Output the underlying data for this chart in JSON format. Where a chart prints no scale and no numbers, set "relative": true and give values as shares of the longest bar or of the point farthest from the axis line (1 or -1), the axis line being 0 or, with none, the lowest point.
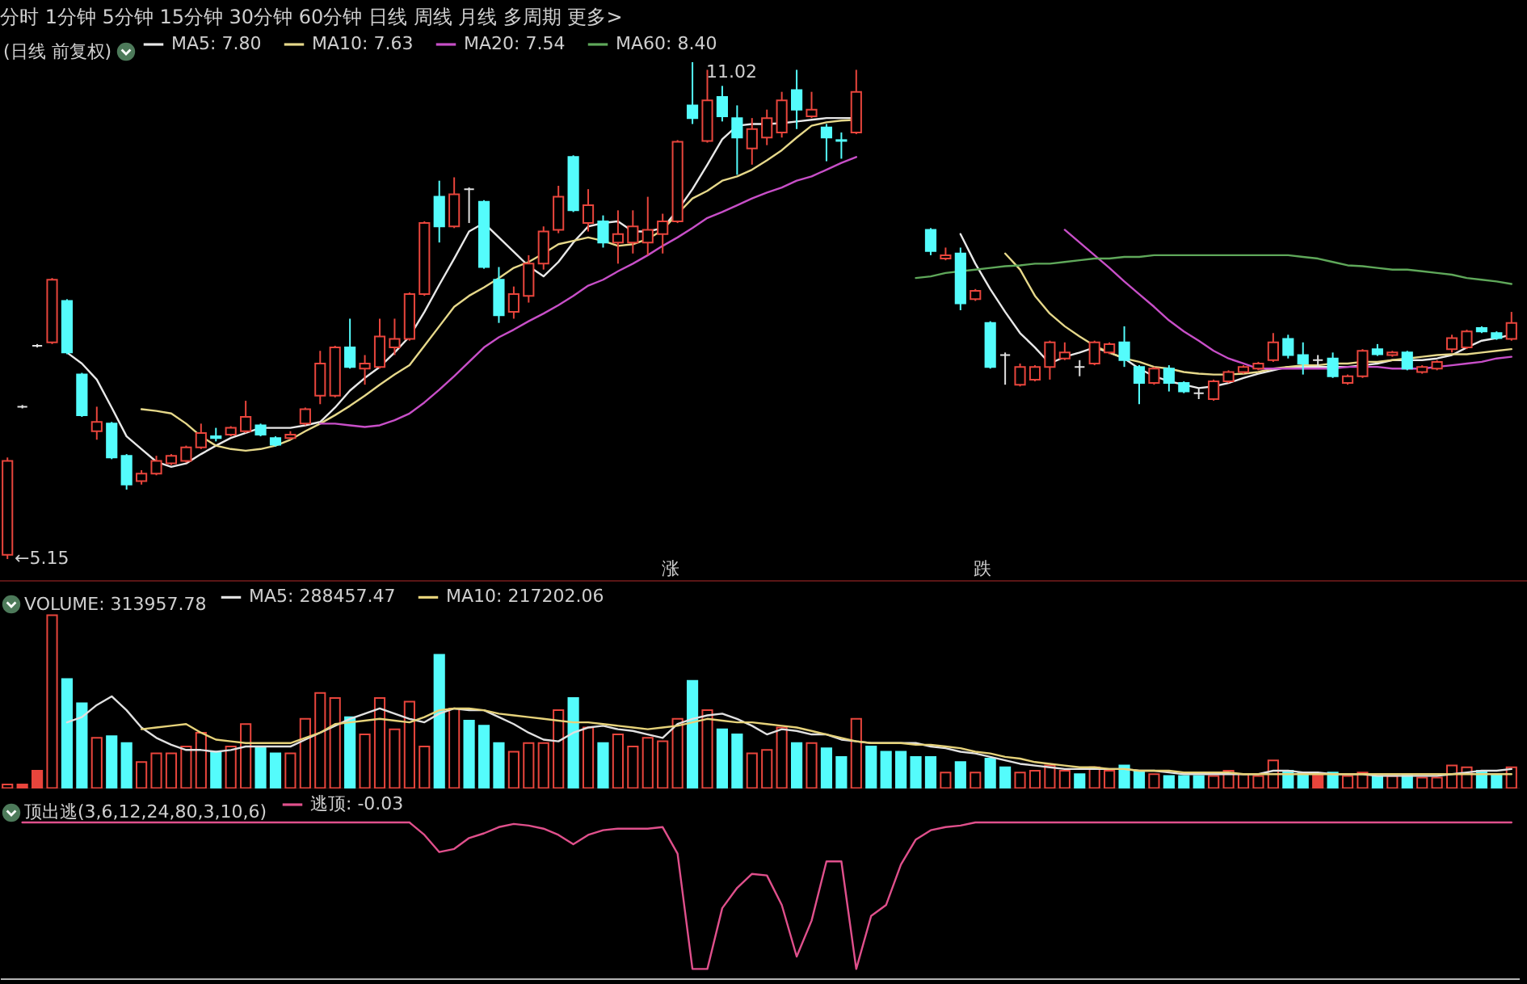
{
  "chart_data": [
    {
      "type": "candlestick",
      "title": "分时 1分钟 5分钟 15分钟 30分钟 60分钟 日线 周线 月线 多周期 更多>",
      "legend_title": "(日线 前复权)",
      "legend": "top left",
      "tick_labels": false,
      "categories": [
        null,
        null,
        null,
        null,
        null,
        null,
        null,
        null,
        null,
        null,
        null,
        null,
        null,
        null,
        null,
        null,
        null,
        null,
        null,
        null,
        null,
        null,
        null,
        null,
        null,
        null,
        null,
        null,
        null,
        null,
        null,
        null,
        null,
        null,
        null,
        null,
        null,
        null,
        null,
        null,
        null,
        null,
        null,
        null,
        null,
        null,
        null,
        null,
        null,
        null,
        null,
        null,
        null,
        null,
        null,
        null,
        null,
        null,
        null,
        null,
        null,
        null,
        null,
        null,
        null,
        null,
        null,
        null,
        null,
        null,
        null,
        null,
        null,
        null,
        null,
        null,
        null,
        null,
        null,
        null,
        null,
        null,
        null,
        null,
        null,
        null,
        null,
        null,
        null,
        null,
        null,
        null,
        null,
        null,
        null,
        null,
        null,
        null,
        null,
        null,
        null,
        null
      ],
      "series": [
        {
          "ohlc": [
            [
              5.2,
              6.35,
              5.15,
              6.31
            ],
            [
              6.95,
              6.97,
              6.93,
              6.95
            ],
            [
              7.67,
              7.69,
              7.65,
              7.67
            ],
            [
              7.71,
              8.47,
              7.69,
              8.45
            ],
            [
              8.2,
              8.22,
              7.57,
              7.59
            ],
            [
              7.33,
              7.35,
              6.83,
              6.85
            ],
            [
              6.66,
              6.95,
              6.56,
              6.77
            ],
            [
              6.75,
              6.77,
              6.33,
              6.35
            ],
            [
              6.37,
              6.39,
              5.97,
              6.03
            ],
            [
              6.07,
              6.2,
              6.03,
              6.16
            ],
            [
              6.16,
              6.37,
              6.14,
              6.31
            ],
            [
              6.28,
              6.39,
              6.26,
              6.37
            ],
            [
              6.31,
              6.49,
              6.29,
              6.47
            ],
            [
              6.47,
              6.75,
              6.45,
              6.64
            ],
            [
              6.6,
              6.7,
              6.54,
              6.58
            ],
            [
              6.62,
              6.72,
              6.6,
              6.7
            ],
            [
              6.66,
              7.02,
              6.64,
              6.83
            ],
            [
              6.73,
              6.75,
              6.6,
              6.62
            ],
            [
              6.58,
              6.6,
              6.48,
              6.5
            ],
            [
              6.58,
              6.66,
              6.56,
              6.62
            ],
            [
              6.75,
              6.94,
              6.73,
              6.92
            ],
            [
              7.08,
              7.61,
              6.98,
              7.46
            ],
            [
              7.08,
              7.67,
              7.06,
              7.65
            ],
            [
              7.65,
              7.99,
              7.4,
              7.42
            ],
            [
              7.4,
              7.56,
              7.21,
              7.46
            ],
            [
              7.42,
              7.99,
              7.4,
              7.78
            ],
            [
              7.65,
              7.99,
              7.56,
              7.75
            ],
            [
              7.75,
              8.3,
              7.73,
              8.28
            ],
            [
              8.28,
              9.14,
              8.26,
              9.12
            ],
            [
              9.43,
              9.62,
              8.89,
              9.08
            ],
            [
              9.08,
              9.66,
              9.06,
              9.46
            ],
            [
              9.52,
              9.54,
              9.12,
              9.52
            ],
            [
              9.37,
              9.39,
              8.58,
              8.6
            ],
            [
              8.45,
              8.6,
              7.94,
              8.03
            ],
            [
              8.07,
              8.37,
              7.99,
              8.28
            ],
            [
              8.26,
              8.74,
              8.18,
              8.64
            ],
            [
              8.64,
              9.08,
              8.57,
              9.02
            ],
            [
              9.04,
              9.56,
              9.0,
              9.43
            ],
            [
              9.9,
              9.92,
              9.25,
              9.27
            ],
            [
              9.12,
              9.52,
              9.02,
              9.33
            ],
            [
              9.14,
              9.21,
              8.83,
              8.89
            ],
            [
              8.89,
              9.27,
              8.64,
              8.99
            ],
            [
              8.89,
              9.27,
              8.76,
              9.08
            ],
            [
              8.89,
              9.43,
              8.74,
              9.04
            ],
            [
              8.99,
              9.23,
              8.76,
              9.14
            ],
            [
              9.14,
              10.1,
              9.12,
              10.08
            ],
            [
              10.51,
              11.02,
              10.29,
              10.36
            ],
            [
              10.09,
              10.93,
              10.07,
              10.57
            ],
            [
              10.61,
              10.74,
              10.32,
              10.38
            ],
            [
              10.36,
              10.51,
              9.69,
              10.13
            ],
            [
              10.0,
              10.36,
              9.81,
              10.23
            ],
            [
              10.13,
              10.46,
              10.04,
              10.36
            ],
            [
              10.19,
              10.67,
              10.13,
              10.57
            ],
            [
              10.69,
              10.93,
              10.23,
              10.46
            ],
            [
              10.38,
              10.67,
              10.36,
              10.46
            ],
            [
              10.25,
              10.29,
              9.85,
              10.13
            ],
            [
              10.1,
              10.19,
              9.88,
              10.09
            ],
            [
              10.19,
              10.93,
              10.17,
              10.67
            ],
            null,
            null,
            null,
            null,
            [
              9.04,
              9.06,
              8.74,
              8.79
            ],
            [
              8.7,
              8.83,
              8.68,
              8.74
            ],
            [
              8.76,
              8.83,
              8.09,
              8.17
            ],
            [
              8.22,
              8.34,
              8.2,
              8.32
            ],
            [
              7.94,
              7.96,
              7.4,
              7.42
            ],
            [
              7.56,
              7.59,
              7.21,
              7.56
            ],
            [
              7.21,
              7.46,
              7.19,
              7.42
            ],
            [
              7.27,
              7.44,
              7.25,
              7.42
            ],
            [
              7.42,
              7.73,
              7.27,
              7.71
            ],
            [
              7.52,
              7.71,
              7.5,
              7.59
            ],
            [
              7.42,
              7.5,
              7.31,
              7.42
            ],
            [
              7.46,
              7.73,
              7.44,
              7.71
            ],
            [
              7.59,
              7.71,
              7.57,
              7.69
            ],
            [
              7.71,
              7.9,
              7.42,
              7.5
            ],
            [
              7.42,
              7.44,
              6.98,
              7.23
            ],
            [
              7.23,
              7.42,
              7.21,
              7.4
            ],
            [
              7.4,
              7.44,
              7.13,
              7.23
            ],
            [
              7.23,
              7.25,
              7.11,
              7.13
            ],
            [
              7.11,
              7.17,
              7.04,
              7.11
            ],
            [
              7.04,
              7.27,
              7.02,
              7.25
            ],
            [
              7.25,
              7.38,
              7.23,
              7.36
            ],
            [
              7.36,
              7.44,
              7.34,
              7.42
            ],
            [
              7.4,
              7.48,
              7.38,
              7.46
            ],
            [
              7.5,
              7.82,
              7.48,
              7.71
            ],
            [
              7.75,
              7.8,
              7.52,
              7.56
            ],
            [
              7.56,
              7.71,
              7.33,
              7.46
            ],
            [
              7.5,
              7.56,
              7.42,
              7.5
            ],
            [
              7.52,
              7.59,
              7.29,
              7.31
            ],
            [
              7.23,
              7.33,
              7.21,
              7.31
            ],
            [
              7.31,
              7.63,
              7.29,
              7.61
            ],
            [
              7.63,
              7.69,
              7.55,
              7.57
            ],
            [
              7.56,
              7.61,
              7.54,
              7.59
            ],
            [
              7.59,
              7.61,
              7.38,
              7.4
            ],
            [
              7.36,
              7.44,
              7.34,
              7.42
            ],
            [
              7.4,
              7.5,
              7.38,
              7.48
            ],
            [
              7.63,
              7.8,
              7.59,
              7.76
            ],
            [
              7.65,
              7.86,
              7.63,
              7.84
            ],
            [
              7.88,
              7.9,
              7.82,
              7.84
            ],
            [
              7.82,
              7.84,
              7.74,
              7.76
            ],
            [
              7.75,
              8.07,
              7.73,
              7.94
            ]
          ],
          "colors": [
            "#e8453c",
            "#e0e0e0",
            "#e0e0e0",
            "#e8453c",
            "#54fcfc",
            "#54fcfc",
            "#e8453c",
            "#54fcfc",
            "#54fcfc",
            "#e8453c",
            "#e8453c",
            "#e8453c",
            "#e8453c",
            "#e8453c",
            "#54fcfc",
            "#e8453c",
            "#e8453c",
            "#54fcfc",
            "#54fcfc",
            "#e8453c",
            "#e8453c",
            "#e8453c",
            "#e8453c",
            "#54fcfc",
            "#e8453c",
            "#e8453c",
            "#e8453c",
            "#e8453c",
            "#e8453c",
            "#54fcfc",
            "#e8453c",
            "#e0e0e0",
            "#54fcfc",
            "#54fcfc",
            "#e8453c",
            "#e8453c",
            "#e8453c",
            "#e8453c",
            "#54fcfc",
            "#e8453c",
            "#54fcfc",
            "#e8453c",
            "#e8453c",
            "#e8453c",
            "#e8453c",
            "#e8453c",
            "#54fcfc",
            "#e8453c",
            "#54fcfc",
            "#54fcfc",
            "#e8453c",
            "#e8453c",
            "#e8453c",
            "#54fcfc",
            "#e8453c",
            "#54fcfc",
            "#54fcfc",
            "#e8453c",
            null,
            null,
            null,
            null,
            "#54fcfc",
            "#e8453c",
            "#54fcfc",
            "#e8453c",
            "#54fcfc",
            "#e0e0e0",
            "#e8453c",
            "#e8453c",
            "#e8453c",
            "#e8453c",
            "#e0e0e0",
            "#e8453c",
            "#e8453c",
            "#54fcfc",
            "#54fcfc",
            "#e8453c",
            "#54fcfc",
            "#54fcfc",
            "#e0e0e0",
            "#e8453c",
            "#e8453c",
            "#e8453c",
            "#e8453c",
            "#e8453c",
            "#54fcfc",
            "#54fcfc",
            "#e0e0e0",
            "#54fcfc",
            "#e8453c",
            "#e8453c",
            "#54fcfc",
            "#e8453c",
            "#54fcfc",
            "#e8453c",
            "#e8453c",
            "#e8453c",
            "#e8453c",
            "#54fcfc",
            "#54fcfc",
            "#e8453c"
          ]
        },
        {
          "type": "line",
          "name": "MA5: 7.80",
          "color": "#e8e8e8",
          "values": [
            null,
            null,
            null,
            null,
            7.59,
            7.46,
            7.27,
            6.94,
            6.6,
            6.45,
            6.3,
            6.24,
            6.28,
            6.39,
            6.49,
            6.58,
            6.64,
            6.7,
            6.7,
            6.7,
            6.73,
            6.77,
            6.94,
            7.14,
            7.29,
            7.42,
            7.59,
            7.78,
            8.07,
            8.39,
            8.7,
            9.02,
            9.12,
            8.95,
            8.78,
            8.61,
            8.49,
            8.66,
            8.89,
            9.08,
            9.12,
            9.14,
            9.02,
            9.02,
            9.06,
            9.27,
            9.52,
            9.81,
            10.11,
            10.27,
            10.29,
            10.29,
            10.3,
            10.32,
            10.34,
            10.36,
            10.36,
            10.36,
            null,
            null,
            null,
            null,
            null,
            null,
            8.99,
            8.64,
            8.34,
            8.07,
            7.82,
            7.65,
            7.46,
            7.54,
            7.59,
            7.65,
            7.59,
            7.52,
            7.4,
            7.31,
            7.25,
            7.21,
            7.17,
            7.19,
            7.23,
            7.29,
            7.34,
            7.38,
            7.42,
            7.42,
            7.42,
            7.42,
            7.42,
            7.44,
            7.46,
            7.5,
            7.5,
            7.5,
            7.52,
            7.56,
            7.65,
            7.73,
            7.76,
            7.8
          ]
        },
        {
          "type": "line",
          "name": "MA10: 7.63",
          "color": "#e6d88a",
          "values": [
            null,
            null,
            null,
            null,
            null,
            null,
            null,
            null,
            null,
            6.92,
            6.9,
            6.87,
            6.75,
            6.6,
            6.49,
            6.45,
            6.43,
            6.45,
            6.49,
            6.56,
            6.66,
            6.75,
            6.85,
            6.96,
            7.08,
            7.21,
            7.33,
            7.44,
            7.67,
            7.9,
            8.13,
            8.26,
            8.36,
            8.47,
            8.59,
            8.66,
            8.76,
            8.87,
            8.91,
            8.95,
            8.91,
            8.85,
            8.87,
            8.93,
            9.04,
            9.23,
            9.41,
            9.5,
            9.62,
            9.67,
            9.75,
            9.86,
            9.98,
            10.13,
            10.27,
            10.31,
            10.33,
            10.34,
            null,
            null,
            null,
            null,
            null,
            null,
            null,
            null,
            null,
            8.76,
            8.57,
            8.26,
            8.05,
            7.9,
            7.78,
            7.67,
            7.59,
            7.52,
            7.48,
            7.42,
            7.4,
            7.36,
            7.34,
            7.33,
            7.33,
            7.34,
            7.36,
            7.4,
            7.42,
            7.44,
            7.44,
            7.46,
            7.46,
            7.48,
            7.48,
            7.5,
            7.52,
            7.54,
            7.56,
            7.57,
            7.57,
            7.59,
            7.61,
            7.63
          ]
        },
        {
          "type": "line",
          "name": "MA20: 7.54",
          "color": "#c84fc8",
          "values": [
            null,
            null,
            null,
            null,
            null,
            null,
            null,
            null,
            null,
            null,
            null,
            null,
            null,
            null,
            null,
            null,
            null,
            null,
            null,
            null,
            null,
            6.75,
            6.75,
            6.73,
            6.71,
            6.73,
            6.79,
            6.87,
            7.0,
            7.15,
            7.31,
            7.48,
            7.65,
            7.77,
            7.86,
            7.96,
            8.05,
            8.15,
            8.26,
            8.38,
            8.45,
            8.55,
            8.64,
            8.74,
            8.85,
            8.95,
            9.06,
            9.18,
            9.25,
            9.33,
            9.41,
            9.48,
            9.54,
            9.62,
            9.67,
            9.75,
            9.83,
            9.9,
            null,
            null,
            null,
            null,
            null,
            null,
            null,
            null,
            null,
            null,
            null,
            null,
            null,
            9.04,
            8.89,
            8.74,
            8.59,
            8.43,
            8.28,
            8.13,
            7.97,
            7.84,
            7.73,
            7.61,
            7.52,
            7.46,
            7.4,
            7.4,
            7.4,
            7.4,
            7.4,
            7.4,
            7.42,
            7.42,
            7.42,
            7.4,
            7.4,
            7.4,
            7.42,
            7.44,
            7.46,
            7.48,
            7.52,
            7.54
          ]
        },
        {
          "type": "line",
          "name": "MA60: 8.40",
          "color": "#5fa85a",
          "values": [
            null,
            null,
            null,
            null,
            null,
            null,
            null,
            null,
            null,
            null,
            null,
            null,
            null,
            null,
            null,
            null,
            null,
            null,
            null,
            null,
            null,
            null,
            null,
            null,
            null,
            null,
            null,
            null,
            null,
            null,
            null,
            null,
            null,
            null,
            null,
            null,
            null,
            null,
            null,
            null,
            null,
            null,
            null,
            null,
            null,
            null,
            null,
            null,
            null,
            null,
            null,
            null,
            null,
            null,
            null,
            null,
            null,
            null,
            null,
            null,
            null,
            8.47,
            8.49,
            8.53,
            8.55,
            8.57,
            8.59,
            8.61,
            8.62,
            8.64,
            8.64,
            8.66,
            8.68,
            8.7,
            8.7,
            8.72,
            8.72,
            8.74,
            8.74,
            8.74,
            8.74,
            8.74,
            8.74,
            8.74,
            8.74,
            8.74,
            8.74,
            8.72,
            8.7,
            8.66,
            8.62,
            8.61,
            8.59,
            8.57,
            8.57,
            8.55,
            8.53,
            8.51,
            8.47,
            8.45,
            8.43,
            8.4
          ]
        }
      ],
      "annotations": [
        "11.02",
        "←5.15",
        "涨",
        "跌"
      ]
    },
    {
      "type": "bar",
      "relative": true,
      "legend_title": "VOLUME: 313957.78",
      "legend": "top left",
      "categories": [
        null,
        null,
        null,
        null,
        null,
        null,
        null,
        null,
        null,
        null,
        null,
        null,
        null,
        null,
        null,
        null,
        null,
        null,
        null,
        null,
        null,
        null,
        null,
        null,
        null,
        null,
        null,
        null,
        null,
        null,
        null,
        null,
        null,
        null,
        null,
        null,
        null,
        null,
        null,
        null,
        null,
        null,
        null,
        null,
        null,
        null,
        null,
        null,
        null,
        null,
        null,
        null,
        null,
        null,
        null,
        null,
        null,
        null,
        null,
        null,
        null,
        null,
        null,
        null,
        null,
        null,
        null,
        null,
        null,
        null,
        null,
        null,
        null,
        null,
        null,
        null,
        null,
        null,
        null,
        null,
        null,
        null,
        null,
        null,
        null,
        null,
        null,
        null,
        null,
        null,
        null,
        null,
        null,
        null,
        null,
        null,
        null,
        null,
        null,
        null,
        null,
        null
      ],
      "series": [
        {
          "values": [
            0.02,
            0.02,
            0.1,
            1,
            0.63,
            0.49,
            0.29,
            0.3,
            0.26,
            0.15,
            0.2,
            0.2,
            0.24,
            0.32,
            0.21,
            0.24,
            0.37,
            0.24,
            0.2,
            0.2,
            0.4,
            0.55,
            0.52,
            0.41,
            0.31,
            0.52,
            0.34,
            0.5,
            0.24,
            0.77,
            0.46,
            0.39,
            0.36,
            0.26,
            0.21,
            0.26,
            0.26,
            0.45,
            0.52,
            0.35,
            0.26,
            0.31,
            0.24,
            0.29,
            0.27,
            0.4,
            0.62,
            0.45,
            0.34,
            0.31,
            0.2,
            0.22,
            0.35,
            0.26,
            0.26,
            0.23,
            0.18,
            0.4,
            0.24,
            0.21,
            0.21,
            0.18,
            0.18,
            0.09,
            0.15,
            0.09,
            0.17,
            0.12,
            0.09,
            0.1,
            0.13,
            0.1,
            0.08,
            0.12,
            0.1,
            0.13,
            0.1,
            0.08,
            0.07,
            0.07,
            0.07,
            0.07,
            0.1,
            0.08,
            0.07,
            0.16,
            0.1,
            0.09,
            0.08,
            0.09,
            0.07,
            0.09,
            0.07,
            0.07,
            0.08,
            0.06,
            0.06,
            0.13,
            0.12,
            0.1,
            0.08,
            0.12
          ],
          "colors": [
            "#e8453c",
            "#e8453c",
            "#e8453c",
            "#e8453c",
            "#54fcfc",
            "#54fcfc",
            "#e8453c",
            "#54fcfc",
            "#54fcfc",
            "#e8453c",
            "#e8453c",
            "#e8453c",
            "#e8453c",
            "#e8453c",
            "#54fcfc",
            "#e8453c",
            "#e8453c",
            "#54fcfc",
            "#54fcfc",
            "#e8453c",
            "#e8453c",
            "#e8453c",
            "#e8453c",
            "#54fcfc",
            "#e8453c",
            "#e8453c",
            "#e8453c",
            "#e8453c",
            "#e8453c",
            "#54fcfc",
            "#e8453c",
            "#54fcfc",
            "#54fcfc",
            "#54fcfc",
            "#e8453c",
            "#e8453c",
            "#e8453c",
            "#e8453c",
            "#54fcfc",
            "#e8453c",
            "#54fcfc",
            "#e8453c",
            "#e8453c",
            "#e8453c",
            "#e8453c",
            "#e8453c",
            "#54fcfc",
            "#e8453c",
            "#54fcfc",
            "#54fcfc",
            "#e8453c",
            "#e8453c",
            "#e8453c",
            "#54fcfc",
            "#e8453c",
            "#54fcfc",
            "#54fcfc",
            "#e8453c",
            "#54fcfc",
            "#54fcfc",
            "#54fcfc",
            "#54fcfc",
            "#54fcfc",
            "#e8453c",
            "#54fcfc",
            "#e8453c",
            "#54fcfc",
            "#54fcfc",
            "#e8453c",
            "#e8453c",
            "#e8453c",
            "#e8453c",
            "#54fcfc",
            "#e8453c",
            "#e8453c",
            "#54fcfc",
            "#54fcfc",
            "#e8453c",
            "#54fcfc",
            "#54fcfc",
            "#54fcfc",
            "#e8453c",
            "#e8453c",
            "#e8453c",
            "#e8453c",
            "#e8453c",
            "#54fcfc",
            "#54fcfc",
            "#e8453c",
            "#54fcfc",
            "#e8453c",
            "#e8453c",
            "#54fcfc",
            "#e8453c",
            "#54fcfc",
            "#e8453c",
            "#e8453c",
            "#e8453c",
            "#e8453c",
            "#54fcfc",
            "#54fcfc",
            "#e8453c"
          ]
        },
        {
          "type": "line",
          "name": "MA5: 288457.47",
          "color": "#e0e0e0",
          "values": [
            null,
            null,
            null,
            null,
            0.38,
            0.41,
            0.48,
            0.53,
            0.45,
            0.35,
            0.29,
            0.25,
            0.22,
            0.22,
            0.21,
            0.22,
            0.24,
            0.24,
            0.24,
            0.24,
            0.28,
            0.32,
            0.36,
            0.4,
            0.43,
            0.46,
            0.43,
            0.4,
            0.38,
            0.43,
            0.46,
            0.45,
            0.45,
            0.41,
            0.37,
            0.32,
            0.28,
            0.27,
            0.32,
            0.35,
            0.36,
            0.34,
            0.33,
            0.31,
            0.29,
            0.37,
            0.4,
            0.42,
            0.43,
            0.4,
            0.36,
            0.31,
            0.34,
            0.33,
            0.31,
            0.31,
            0.28,
            0.27,
            0.26,
            0.26,
            0.26,
            0.26,
            0.24,
            0.23,
            0.21,
            0.2,
            0.18,
            0.16,
            0.14,
            0.13,
            0.12,
            0.11,
            0.11,
            0.11,
            0.11,
            0.11,
            0.1,
            0.1,
            0.09,
            0.08,
            0.08,
            0.08,
            0.08,
            0.08,
            0.08,
            0.1,
            0.1,
            0.09,
            0.09,
            0.08,
            0.08,
            0.08,
            0.07,
            0.07,
            0.07,
            0.07,
            0.07,
            0.08,
            0.09,
            0.1,
            0.1,
            0.11
          ]
        },
        {
          "type": "line",
          "name": "MA10: 217202.06",
          "color": "#e6d27a",
          "values": [
            null,
            null,
            null,
            null,
            null,
            null,
            null,
            null,
            null,
            0.34,
            0.35,
            0.36,
            0.37,
            0.32,
            0.28,
            0.27,
            0.26,
            0.26,
            0.26,
            0.26,
            0.29,
            0.32,
            0.37,
            0.38,
            0.39,
            0.4,
            0.39,
            0.38,
            0.41,
            0.45,
            0.46,
            0.46,
            0.45,
            0.43,
            0.42,
            0.41,
            0.4,
            0.39,
            0.38,
            0.38,
            0.37,
            0.36,
            0.35,
            0.34,
            0.35,
            0.36,
            0.38,
            0.4,
            0.39,
            0.38,
            0.38,
            0.37,
            0.36,
            0.35,
            0.33,
            0.31,
            0.29,
            0.27,
            0.26,
            0.26,
            0.26,
            0.25,
            0.25,
            0.24,
            0.23,
            0.21,
            0.2,
            0.18,
            0.17,
            0.15,
            0.14,
            0.13,
            0.12,
            0.12,
            0.11,
            0.11,
            0.1,
            0.1,
            0.1,
            0.09,
            0.09,
            0.09,
            0.09,
            0.08,
            0.08,
            0.08,
            0.08,
            0.08,
            0.08,
            0.08,
            0.08,
            0.08,
            0.08,
            0.08,
            0.08,
            0.08,
            0.08,
            0.08,
            0.08,
            0.08,
            0.08,
            0.08
          ]
        }
      ]
    },
    {
      "type": "line",
      "relative": true,
      "legend_title": "顶出逃(3,6,12,24,80,3,10,6)",
      "legend": "top left",
      "categories": [
        null,
        null,
        null,
        null,
        null,
        null,
        null,
        null,
        null,
        null,
        null,
        null,
        null,
        null,
        null,
        null,
        null,
        null,
        null,
        null,
        null,
        null,
        null,
        null,
        null,
        null,
        null,
        null,
        null,
        null,
        null,
        null,
        null,
        null,
        null,
        null,
        null,
        null,
        null,
        null,
        null,
        null,
        null,
        null,
        null,
        null,
        null,
        null,
        null,
        null,
        null,
        null,
        null,
        null,
        null,
        null,
        null,
        null,
        null,
        null,
        null,
        null,
        null,
        null,
        null,
        null,
        null,
        null,
        null,
        null,
        null,
        null,
        null,
        null,
        null,
        null,
        null,
        null,
        null,
        null,
        null,
        null,
        null,
        null,
        null,
        null,
        null,
        null,
        null,
        null,
        null,
        null,
        null,
        null,
        null,
        null,
        null,
        null,
        null,
        null,
        null,
        null
      ],
      "series": [
        {
          "name": "逃顶: -0.03",
          "color": "#e0508c",
          "values": [
            null,
            1,
            1,
            1,
            1,
            1,
            1,
            1,
            1,
            1,
            1,
            1,
            1,
            1,
            1,
            1,
            1,
            1,
            1,
            1,
            1,
            1,
            1,
            1,
            1,
            1,
            1,
            1,
            0.92,
            0.81,
            0.83,
            0.9,
            0.93,
            0.97,
            0.99,
            0.98,
            0.96,
            0.92,
            0.86,
            0.92,
            0.95,
            0.96,
            0.96,
            0.96,
            0.97,
            0.8,
            0.06,
            0.06,
            0.45,
            0.58,
            0.67,
            0.66,
            0.47,
            0.14,
            0.37,
            0.75,
            0.75,
            0.06,
            0.4,
            0.47,
            0.73,
            0.89,
            0.95,
            0.97,
            0.98,
            1,
            1,
            1,
            1,
            1,
            1,
            1,
            1,
            1,
            1,
            1,
            1,
            1,
            1,
            1,
            1,
            1,
            1,
            1,
            1,
            1,
            1,
            1,
            1,
            1,
            1,
            1,
            1,
            1,
            1,
            1,
            1,
            1,
            1,
            1,
            1,
            1
          ]
        }
      ]
    }
  ]
}
